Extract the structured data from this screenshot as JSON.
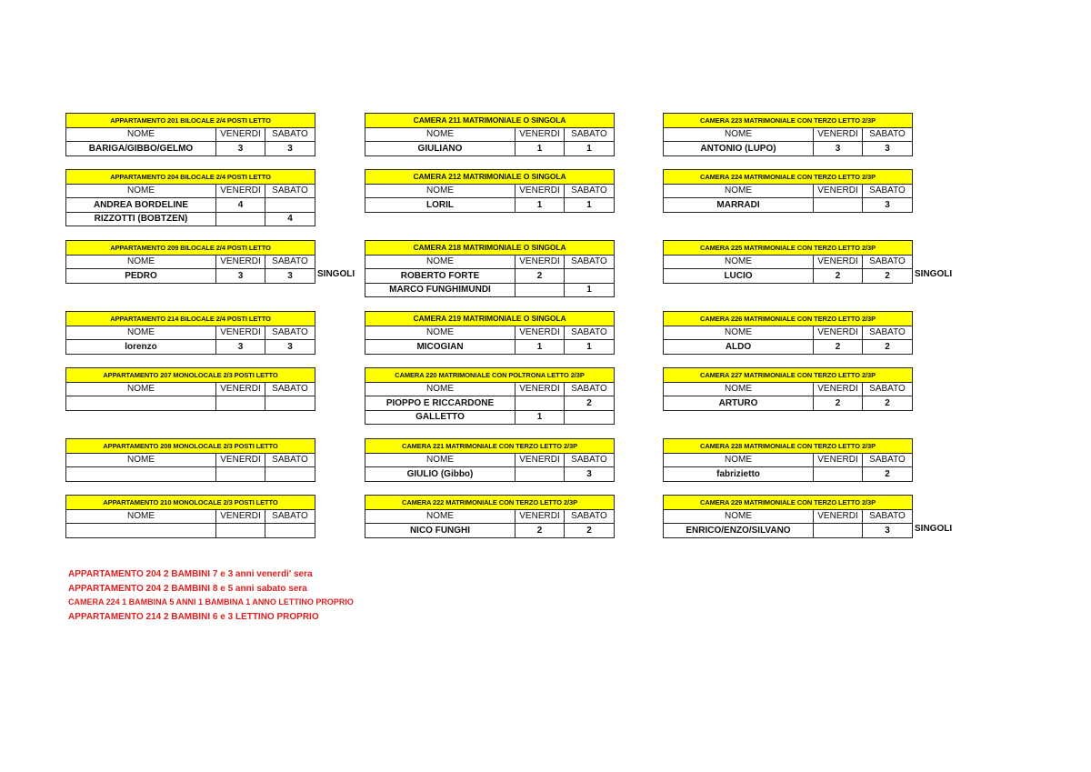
{
  "headers": {
    "name": "NOME",
    "fri": "VENERDI",
    "sat": "SABATO"
  },
  "tables": [
    {
      "title": "APPARTAMENTO 201 BILOCALE 2/4 POSTI LETTO",
      "rows": [
        [
          "BARIGA/GIBBO/GELMO",
          "3",
          "3"
        ]
      ]
    },
    {
      "title": "APPARTAMENTO 204 BILOCALE 2/4 POSTI LETTO",
      "rows": [
        [
          "ANDREA BORDELINE",
          "4",
          ""
        ],
        [
          "RIZZOTTI (BOBTZEN)",
          "",
          "4"
        ]
      ]
    },
    {
      "title": "APPARTAMENTO 209 BILOCALE 2/4 POSTI LETTO",
      "rows": [
        [
          "PEDRO",
          "3",
          "3"
        ]
      ],
      "side": "SINGOLI"
    },
    {
      "title": "APPARTAMENTO 214 BILOCALE 2/4 POSTI LETTO",
      "rows": [
        [
          "lorenzo",
          "3",
          "3"
        ]
      ]
    },
    {
      "title": "APPARTAMENTO 207 MONOLOCALE 2/3 POSTI LETTO",
      "rows": [
        [
          "",
          "",
          ""
        ]
      ]
    },
    {
      "title": "APPARTAMENTO 208 MONOLOCALE 2/3 POSTI LETTO",
      "rows": [
        [
          "",
          "",
          ""
        ]
      ]
    },
    {
      "title": "APPARTAMENTO 210 MONOLOCALE 2/3 POSTI LETTO",
      "rows": [
        [
          "",
          "",
          ""
        ]
      ]
    },
    {
      "title": "CAMERA 211 MATRIMONIALE O SINGOLA",
      "rows": [
        [
          "GIULIANO",
          "1",
          "1"
        ]
      ]
    },
    {
      "title": "CAMERA 212 MATRIMONIALE O SINGOLA",
      "rows": [
        [
          "LORIL",
          "1",
          "1"
        ]
      ]
    },
    {
      "title": "CAMERA 218 MATRIMONIALE O SINGOLA",
      "rows": [
        [
          "ROBERTO FORTE",
          "2",
          ""
        ],
        [
          "MARCO FUNGHIMUNDI",
          "",
          "1"
        ]
      ]
    },
    {
      "title": "CAMERA 219 MATRIMONIALE O SINGOLA",
      "rows": [
        [
          "MICOGIAN",
          "1",
          "1"
        ]
      ]
    },
    {
      "title": "CAMERA 220 MATRIMONIALE CON POLTRONA LETTO 2/3P",
      "rows": [
        [
          "PIOPPO E RICCARDONE",
          "",
          "2"
        ],
        [
          "GALLETTO",
          "1",
          ""
        ]
      ]
    },
    {
      "title": "CAMERA 221 MATRIMONIALE CON TERZO LETTO 2/3P",
      "rows": [
        [
          "GIULIO (Gibbo)",
          "",
          "3"
        ]
      ]
    },
    {
      "title": "CAMERA 222 MATRIMONIALE CON TERZO LETTO 2/3P",
      "rows": [
        [
          "NICO FUNGHI",
          "2",
          "2"
        ]
      ]
    },
    {
      "title": "CAMERA 223 MATRIMONIALE CON TERZO LETTO 2/3P",
      "rows": [
        [
          "ANTONIO (LUPO)",
          "3",
          "3"
        ]
      ]
    },
    {
      "title": "CAMERA 224 MATRIMONIALE CON TERZO LETTO 2/3P",
      "rows": [
        [
          "MARRADI",
          "",
          "3"
        ]
      ]
    },
    {
      "title": "CAMERA 225 MATRIMONIALE CON TERZO LETTO 2/3P",
      "rows": [
        [
          "LUCIO",
          "2",
          "2"
        ]
      ],
      "side": "SINGOLI"
    },
    {
      "title": "CAMERA 226 MATRIMONIALE CON TERZO LETTO 2/3P",
      "rows": [
        [
          "ALDO",
          "2",
          "2"
        ]
      ]
    },
    {
      "title": "CAMERA 227 MATRIMONIALE CON TERZO LETTO 2/3P",
      "rows": [
        [
          "ARTURO",
          "2",
          "2"
        ]
      ]
    },
    {
      "title": "CAMERA 228 MATRIMONIALE CON TERZO LETTO 2/3P",
      "rows": [
        [
          "fabrizietto",
          "",
          "2"
        ]
      ]
    },
    {
      "title": "CAMERA 229 MATRIMONIALE CON TERZO LETTO 2/3P",
      "rows": [
        [
          "ENRICO/ENZO/SILVANO",
          "",
          "3"
        ]
      ],
      "side": "SINGOLI"
    }
  ],
  "notes": [
    "APPARTAMENTO 204 2 BAMBINI 7 e 3 anni venerdi' sera",
    "APPARTAMENTO 204 2 BAMBINI 8 e 5 anni sabato sera",
    "CAMERA 224 1 BAMBINA 5 ANNI 1 BAMBINA 1 ANNO LETTINO PROPRIO",
    "APPARTAMENTO 214 2 BAMBINI 6 e 3 LETTINO PROPRIO"
  ],
  "colors": {
    "header_fill": "#ffff00",
    "note_text": "#e02020"
  }
}
